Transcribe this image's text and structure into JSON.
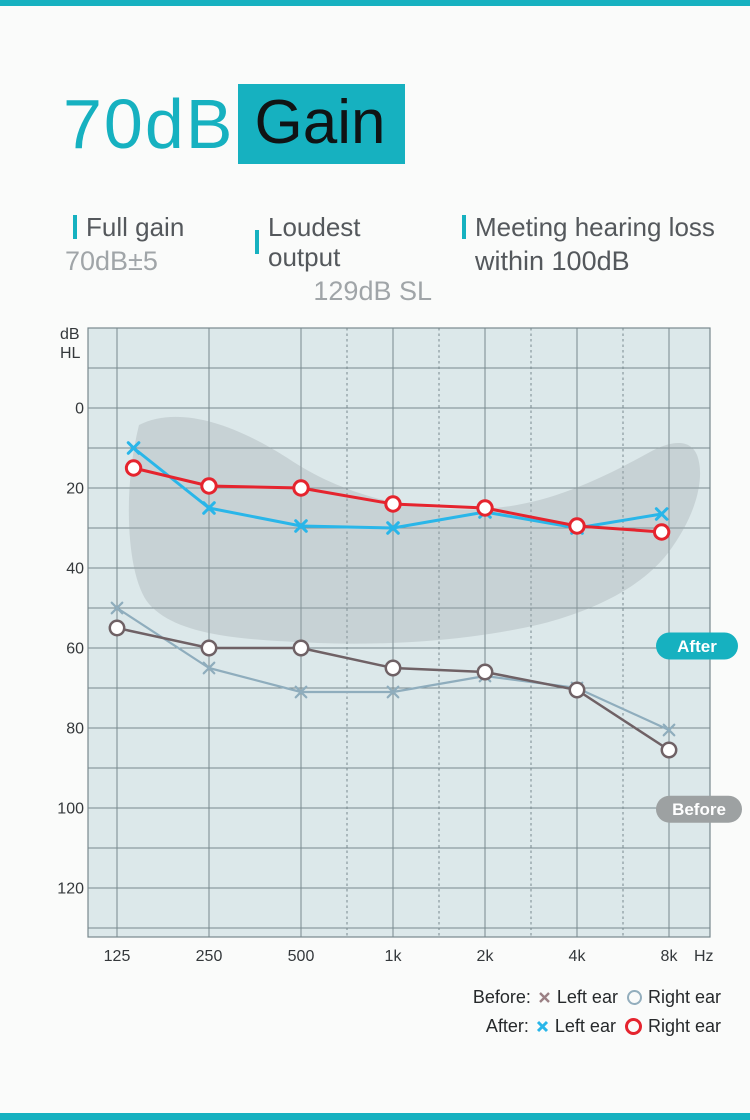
{
  "colors": {
    "accent": "#16b1c0",
    "page_bg": "#fafbfa",
    "chart_bg": "#dce8ea",
    "grid": "#78898e",
    "banana": "#9aa4a7",
    "before_badge": "#9da1a2",
    "axis_text": "#34383b"
  },
  "title": {
    "prefix": "70dB",
    "highlight": "Gain"
  },
  "stats": [
    {
      "label": "Full gain",
      "value": "70dB±5"
    },
    {
      "label": "Loudest output",
      "value": "129dB SL"
    },
    {
      "label": "Meeting hearing loss",
      "value": "within 100dB"
    }
  ],
  "chart_data": {
    "type": "line",
    "y_axis": {
      "label_line1": "dB",
      "label_line2": "HL",
      "ticks": [
        0,
        20,
        40,
        60,
        80,
        100,
        120
      ],
      "range": [
        -20,
        132
      ],
      "direction": "down",
      "minor_grid_step": 10
    },
    "x_axis": {
      "unit": "Hz",
      "categories": [
        "125",
        "250",
        "500",
        "1k",
        "2k",
        "4k",
        "8k"
      ],
      "minor_dashed_lines": [
        "750",
        "1.5k",
        "3k",
        "6k"
      ]
    },
    "grid": true,
    "series": [
      {
        "name": "Before left ear",
        "marker": "x",
        "color": "#8fadbd",
        "line_width": 2.2,
        "values": [
          50,
          65,
          71,
          71,
          67,
          70,
          80.5
        ]
      },
      {
        "name": "Before right ear",
        "marker": "o",
        "color": "#6f6165",
        "line_width": 2.5,
        "values": [
          55,
          60,
          60,
          65,
          66,
          70.5,
          85.5
        ]
      },
      {
        "name": "After left ear",
        "marker": "x",
        "color": "#29b6e9",
        "line_width": 3,
        "values": [
          10,
          25,
          29.5,
          30,
          26,
          30,
          26.5
        ],
        "x_offsets": [
          0.18,
          0,
          0,
          0,
          0,
          0,
          -0.08
        ]
      },
      {
        "name": "After right ear",
        "marker": "o",
        "color": "#e5242e",
        "line_width": 3,
        "values": [
          15,
          19.5,
          20,
          24,
          25,
          29.5,
          31
        ],
        "x_offsets": [
          0.18,
          0,
          0,
          0,
          0,
          0,
          -0.08
        ]
      }
    ],
    "badges": [
      {
        "label": "After",
        "db": 59.5,
        "color": "#16b1c0",
        "text_color": "#ffffff"
      },
      {
        "label": "Before",
        "db": 100.3,
        "color": "#9da1a2",
        "text_color": "#ffffff"
      }
    ],
    "shaded_region": {
      "name": "speech banana",
      "note": "gray blob behind After curves, roughly 0–55 dB across 125–8k"
    }
  },
  "legend": {
    "rows": [
      {
        "label": "Before:",
        "items": [
          {
            "marker": "x",
            "color": "#9b8084",
            "label": "Left ear"
          },
          {
            "marker": "ring",
            "color": "#93aebd",
            "label": "Right ear"
          }
        ]
      },
      {
        "label": "After:",
        "items": [
          {
            "marker": "x",
            "color": "#29b6e9",
            "label": "Left ear"
          },
          {
            "marker": "ring",
            "color": "#e5242e",
            "label": "Right ear"
          }
        ]
      }
    ]
  }
}
